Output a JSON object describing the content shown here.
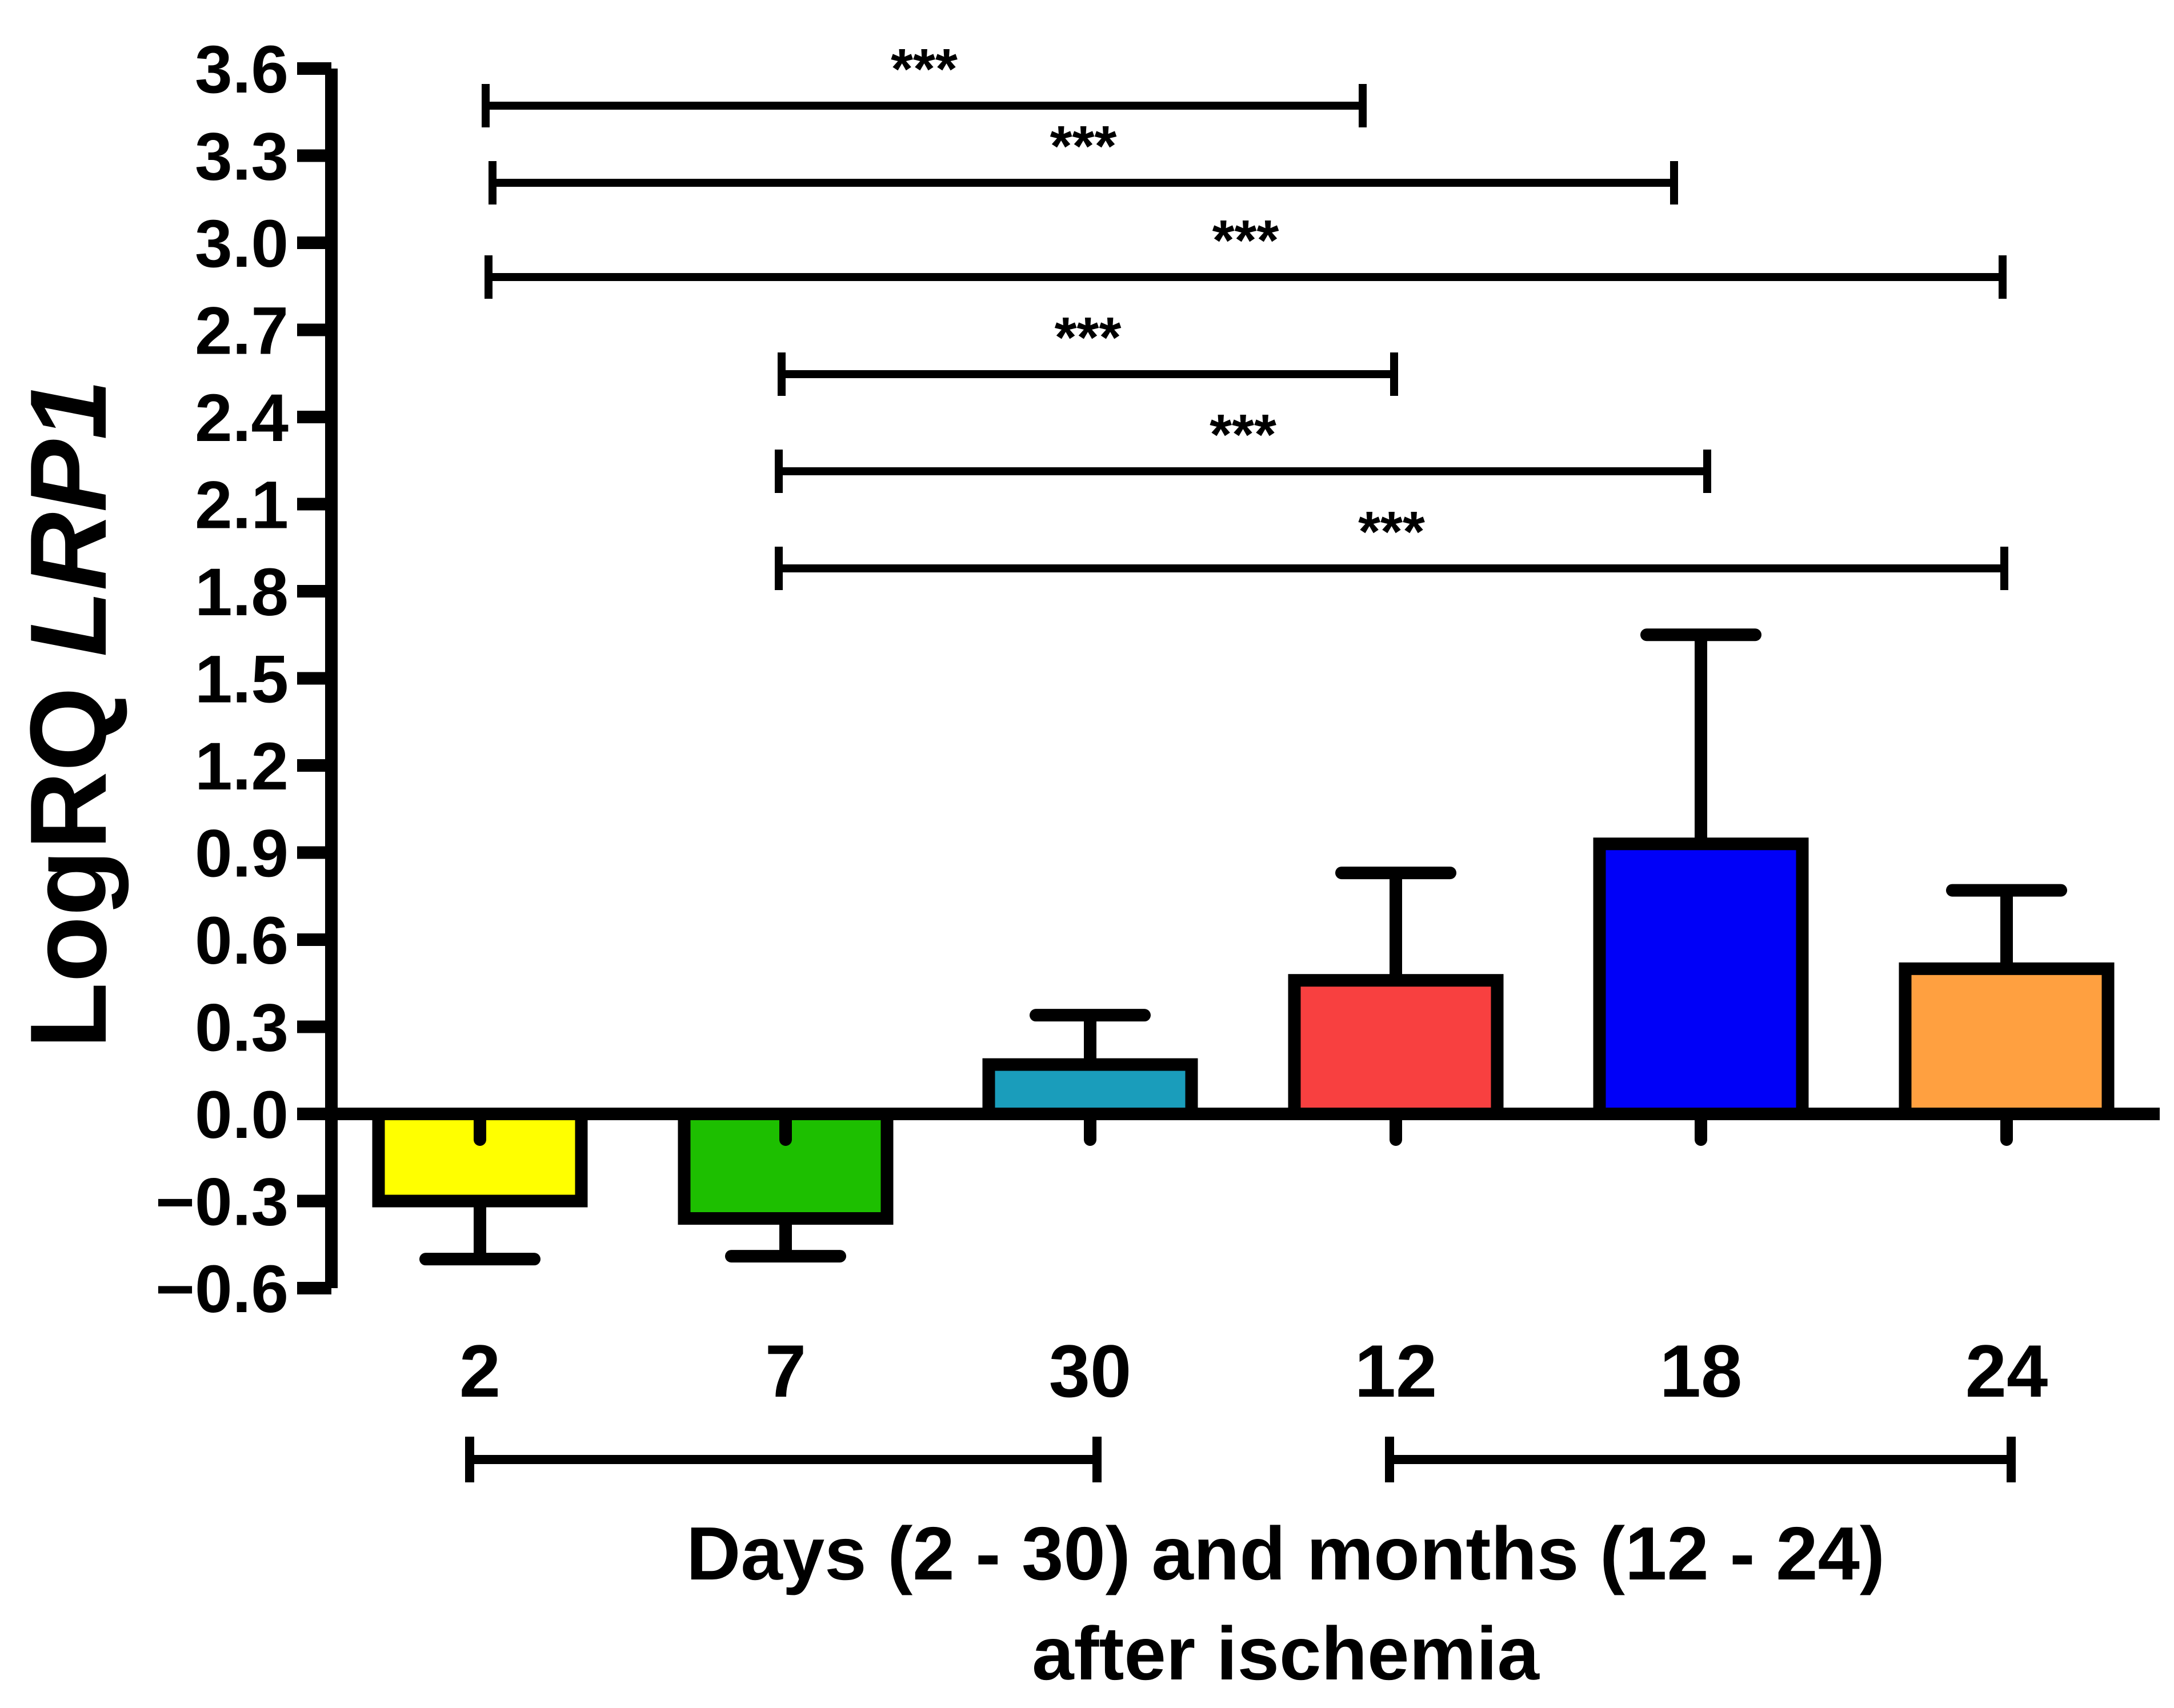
{
  "chart_data": {
    "type": "bar",
    "categories": [
      "2",
      "7",
      "30",
      "12",
      "18",
      "24"
    ],
    "values": [
      -0.3,
      -0.36,
      0.17,
      0.46,
      0.93,
      0.5
    ],
    "errors": [
      0.2,
      0.13,
      0.17,
      0.37,
      0.72,
      0.27
    ],
    "colors": [
      "#ffff00",
      "#1dbf00",
      "#1a9dbb",
      "#f84040",
      "#0000f8",
      "#ffa040"
    ],
    "ylim": [
      -0.6,
      3.6
    ],
    "y_ticks": [
      "3.6",
      "3.3",
      "3.0",
      "2.7",
      "2.4",
      "2.1",
      "1.8",
      "1.5",
      "1.2",
      "0.9",
      "0.6",
      "0.3",
      "0.0",
      "−0.3",
      "−0.6"
    ],
    "ylabel_prefix": "LogRQ ",
    "ylabel_gene": "LRP1",
    "xlabel_line1": "Days (2 - 30) and months (12 - 24)",
    "xlabel_line2": "after ischemia",
    "group_brackets": [
      {
        "from": 0,
        "to": 2
      },
      {
        "from": 3,
        "to": 5
      }
    ],
    "significance": [
      {
        "from": 0,
        "to": 3,
        "label": "***"
      },
      {
        "from": 0,
        "to": 4,
        "label": "***"
      },
      {
        "from": 0,
        "to": 5,
        "label": "***"
      },
      {
        "from": 1,
        "to": 3,
        "label": "***"
      },
      {
        "from": 1,
        "to": 4,
        "label": "***"
      },
      {
        "from": 1,
        "to": 5,
        "label": "***"
      }
    ],
    "grid": false,
    "legend": "none"
  }
}
